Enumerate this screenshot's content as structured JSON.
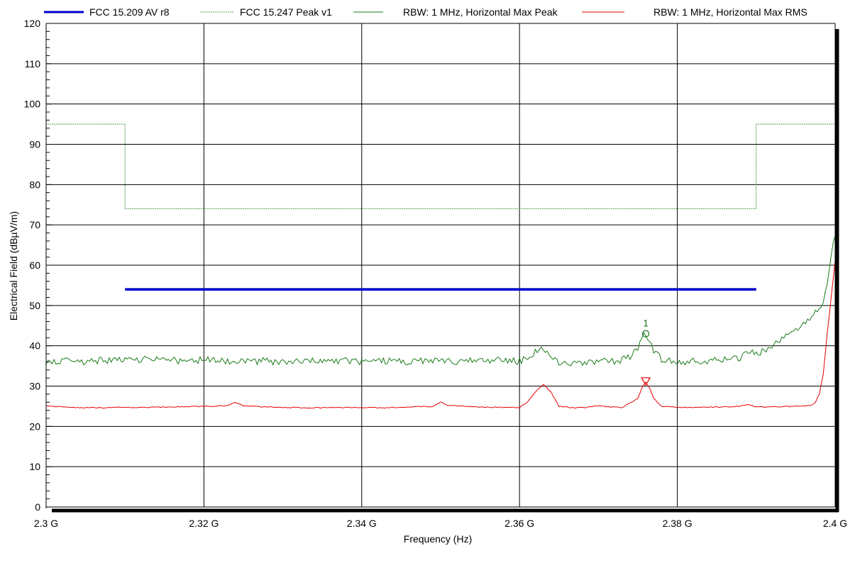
{
  "chart_data": {
    "type": "line",
    "xlabel": "Frequency (Hz)",
    "ylabel": "Electrical Field (dBµV/m)",
    "xlim": [
      2.3,
      2.4
    ],
    "ylim": [
      0,
      120
    ],
    "x_unit": "GHz",
    "x_ticks": [
      2.3,
      2.32,
      2.34,
      2.36,
      2.38,
      2.4
    ],
    "x_tick_labels": [
      "2.3 G",
      "2.32 G",
      "2.34 G",
      "2.36 G",
      "2.38 G",
      "2.4 G"
    ],
    "y_ticks": [
      0,
      10,
      20,
      30,
      40,
      50,
      60,
      70,
      80,
      90,
      100,
      110,
      120
    ],
    "y_tick_labels": [
      "0",
      "10",
      "20",
      "30",
      "40",
      "50",
      "60",
      "70",
      "80",
      "90",
      "100",
      "110",
      "120"
    ],
    "grid": true,
    "legend_position": "top",
    "series": [
      {
        "name": "FCC 15.209 AV r8",
        "color": "#0000cc",
        "style": "thick",
        "x": [
          2.31,
          2.39
        ],
        "y": [
          54,
          54
        ]
      },
      {
        "name": "FCC 15.247 Peak v1",
        "color": "#2e8b2e",
        "style": "dotted",
        "x": [
          2.3,
          2.31,
          2.31,
          2.39,
          2.39,
          2.4
        ],
        "y": [
          95,
          95,
          74,
          74,
          95,
          95
        ]
      },
      {
        "name": "RBW: 1 MHz, Horizontal Max Peak",
        "color": "#1a7a1a",
        "style": "solid",
        "x": [
          2.3,
          2.302,
          2.305,
          2.308,
          2.31,
          2.312,
          2.315,
          2.318,
          2.32,
          2.322,
          2.325,
          2.328,
          2.33,
          2.332,
          2.335,
          2.338,
          2.34,
          2.342,
          2.345,
          2.348,
          2.35,
          2.352,
          2.355,
          2.358,
          2.36,
          2.361,
          2.362,
          2.3628,
          2.3635,
          2.365,
          2.367,
          2.37,
          2.372,
          2.374,
          2.375,
          2.3755,
          2.376,
          2.3765,
          2.377,
          2.378,
          2.38,
          2.382,
          2.385,
          2.388,
          2.389,
          2.39,
          2.391,
          2.392,
          2.393,
          2.394,
          2.395,
          2.396,
          2.397,
          2.398,
          2.3985,
          2.399,
          2.3995,
          2.4
        ],
        "y": [
          36,
          36.2,
          36.1,
          36.5,
          36.3,
          36.6,
          36.4,
          36.2,
          36.5,
          36.3,
          36.1,
          36.2,
          36.0,
          36.4,
          36.2,
          36.3,
          36.1,
          36.2,
          36.0,
          36.3,
          36.2,
          36.1,
          36.4,
          36.3,
          36.2,
          37,
          38.5,
          39.0,
          38.0,
          36.0,
          35.8,
          36.0,
          36.2,
          37.0,
          39.5,
          42.0,
          43.0,
          41.5,
          39.0,
          36.5,
          36.0,
          36.2,
          36.3,
          37.0,
          38.5,
          38.0,
          39.0,
          40.0,
          41.0,
          42.5,
          44.0,
          45.5,
          47.0,
          49.0,
          51.0,
          56.0,
          63.0,
          67.0
        ]
      },
      {
        "name": "RBW: 1 MHz, Horizontal Max RMS",
        "color": "#e60000",
        "style": "solid",
        "x": [
          2.3,
          2.305,
          2.31,
          2.315,
          2.32,
          2.323,
          2.324,
          2.325,
          2.328,
          2.33,
          2.335,
          2.338,
          2.34,
          2.345,
          2.349,
          2.35,
          2.351,
          2.355,
          2.36,
          2.361,
          2.362,
          2.363,
          2.364,
          2.365,
          2.367,
          2.369,
          2.37,
          2.371,
          2.373,
          2.375,
          2.3755,
          2.376,
          2.3765,
          2.377,
          2.378,
          2.38,
          2.385,
          2.388,
          2.389,
          2.39,
          2.393,
          2.396,
          2.397,
          2.3975,
          2.398,
          2.3985,
          2.399,
          2.3995,
          2.4
        ],
        "y": [
          25,
          24.6,
          24.7,
          24.8,
          25.0,
          25.1,
          26.0,
          25.1,
          24.8,
          24.7,
          24.6,
          24.7,
          24.6,
          24.7,
          25.0,
          26.0,
          25.2,
          24.8,
          24.7,
          26.0,
          28.5,
          30.5,
          28.5,
          25.0,
          24.6,
          24.8,
          25.2,
          24.9,
          24.6,
          27.0,
          29.5,
          31.0,
          29.5,
          27.0,
          25.0,
          24.7,
          24.8,
          25.0,
          25.5,
          24.8,
          24.9,
          25.0,
          25.3,
          26.0,
          28.0,
          33.0,
          43.0,
          52.0,
          61.0
        ]
      }
    ],
    "markers": [
      {
        "label": "1",
        "symbol": "circle",
        "x": 2.376,
        "y": 43,
        "color": "#1a7a1a"
      },
      {
        "label": "",
        "symbol": "triangle-down",
        "x": 2.376,
        "y": 31,
        "color": "#e60000"
      }
    ]
  }
}
